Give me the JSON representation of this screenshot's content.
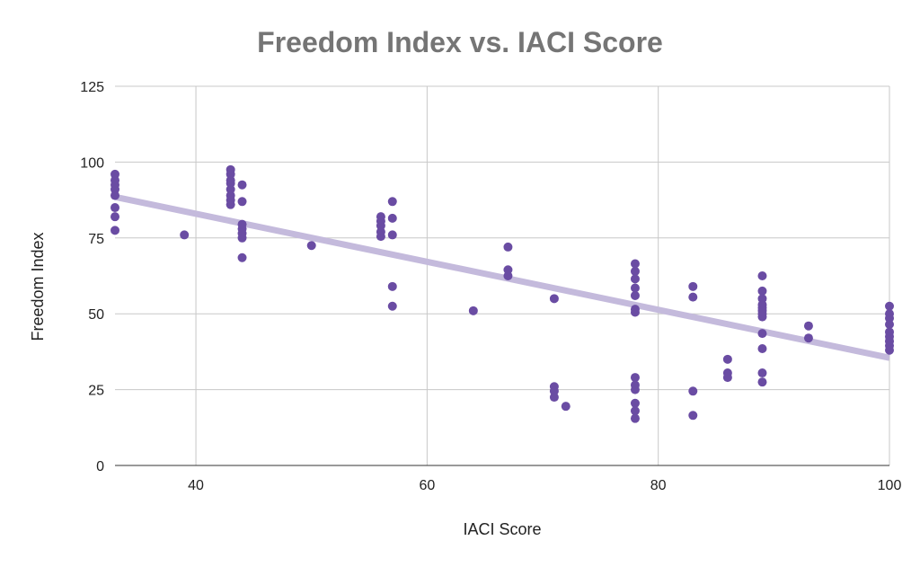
{
  "chart_data": {
    "type": "scatter",
    "title": "Freedom Index vs. IACI Score",
    "xlabel": "IACI Score",
    "ylabel": "Freedom Index",
    "xlim": [
      33,
      100
    ],
    "ylim": [
      0,
      125
    ],
    "xticks": [
      40,
      60,
      80,
      100
    ],
    "yticks": [
      0,
      25,
      50,
      75,
      100,
      125
    ],
    "grid": true,
    "legend": "none",
    "series": [
      {
        "color": "#6a4ca3",
        "points": [
          [
            33,
            96
          ],
          [
            33,
            94
          ],
          [
            33,
            92.5
          ],
          [
            33,
            91
          ],
          [
            33,
            89
          ],
          [
            33,
            85
          ],
          [
            33,
            82
          ],
          [
            33,
            77.5
          ],
          [
            39,
            76
          ],
          [
            43,
            97.5
          ],
          [
            43,
            96
          ],
          [
            43,
            94
          ],
          [
            43,
            93
          ],
          [
            43,
            91
          ],
          [
            43,
            89
          ],
          [
            43,
            87.5
          ],
          [
            43,
            86
          ],
          [
            44,
            92.5
          ],
          [
            44,
            87
          ],
          [
            44,
            79.5
          ],
          [
            44,
            78
          ],
          [
            44,
            76.5
          ],
          [
            44,
            75
          ],
          [
            44,
            68.5
          ],
          [
            50,
            72.5
          ],
          [
            56,
            82
          ],
          [
            56,
            80.5
          ],
          [
            56,
            79
          ],
          [
            56,
            77
          ],
          [
            56,
            75.5
          ],
          [
            57,
            87
          ],
          [
            57,
            81.5
          ],
          [
            57,
            76
          ],
          [
            57,
            59
          ],
          [
            57,
            52.5
          ],
          [
            64,
            51
          ],
          [
            67,
            72
          ],
          [
            67,
            64.5
          ],
          [
            67,
            62.5
          ],
          [
            71,
            55
          ],
          [
            71,
            26
          ],
          [
            71,
            24.5
          ],
          [
            71,
            22.5
          ],
          [
            72,
            19.5
          ],
          [
            78,
            66.5
          ],
          [
            78,
            64
          ],
          [
            78,
            61.5
          ],
          [
            78,
            58.5
          ],
          [
            78,
            56
          ],
          [
            78,
            51.5
          ],
          [
            78,
            50.5
          ],
          [
            78,
            29
          ],
          [
            78,
            26.5
          ],
          [
            78,
            25
          ],
          [
            78,
            20.5
          ],
          [
            78,
            18
          ],
          [
            78,
            15.5
          ],
          [
            83,
            59
          ],
          [
            83,
            55.5
          ],
          [
            83,
            24.5
          ],
          [
            83,
            16.5
          ],
          [
            86,
            35
          ],
          [
            86,
            30.5
          ],
          [
            86,
            29
          ],
          [
            89,
            62.5
          ],
          [
            89,
            57.5
          ],
          [
            89,
            55
          ],
          [
            89,
            53
          ],
          [
            89,
            52
          ],
          [
            89,
            51
          ],
          [
            89,
            50
          ],
          [
            89,
            49
          ],
          [
            89,
            43.5
          ],
          [
            89,
            38.5
          ],
          [
            89,
            30.5
          ],
          [
            89,
            27.5
          ],
          [
            93,
            46
          ],
          [
            93,
            42
          ],
          [
            100,
            52.5
          ],
          [
            100,
            50
          ],
          [
            100,
            48.5
          ],
          [
            100,
            46.5
          ],
          [
            100,
            44
          ],
          [
            100,
            42.5
          ],
          [
            100,
            41
          ],
          [
            100,
            39.5
          ],
          [
            100,
            38
          ]
        ]
      }
    ],
    "trendline": {
      "color": "#c4badc",
      "x": [
        33,
        100
      ],
      "y": [
        88.5,
        35.5
      ]
    }
  }
}
